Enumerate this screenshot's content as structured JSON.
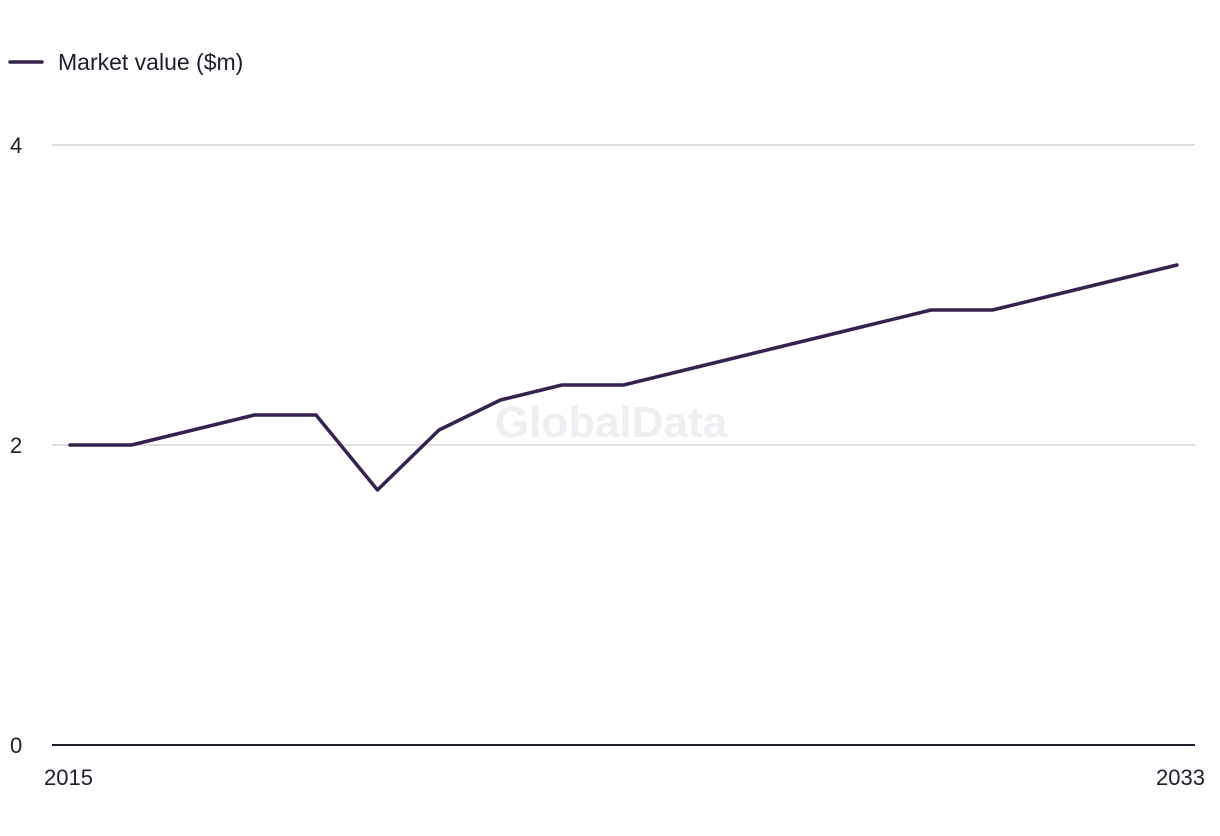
{
  "colors": {
    "series": "#35224f",
    "grid": "#d6d4db",
    "axis": "#1f1d2b",
    "watermark": "#efeef2"
  },
  "watermark": "GlobalData",
  "chart_data": {
    "type": "line",
    "title": "",
    "xlabel": "",
    "ylabel": "",
    "x": [
      2015,
      2016,
      2017,
      2018,
      2019,
      2020,
      2021,
      2022,
      2023,
      2024,
      2025,
      2026,
      2027,
      2028,
      2029,
      2030,
      2031,
      2032,
      2033
    ],
    "x_tick_labels": [
      "2015",
      "2033"
    ],
    "y_tick_labels": [
      "0",
      "2",
      "4"
    ],
    "y_ticks": [
      0,
      2,
      4
    ],
    "ylim": [
      0,
      4
    ],
    "xlim": [
      2015,
      2033
    ],
    "grid": true,
    "legend": "top-left",
    "series": [
      {
        "name": "Market value ($m)",
        "values": [
          2.0,
          2.0,
          2.1,
          2.2,
          2.2,
          1.7,
          2.1,
          2.3,
          2.4,
          2.4,
          2.5,
          2.6,
          2.7,
          2.8,
          2.9,
          2.9,
          3.0,
          3.1,
          3.2
        ]
      }
    ]
  }
}
